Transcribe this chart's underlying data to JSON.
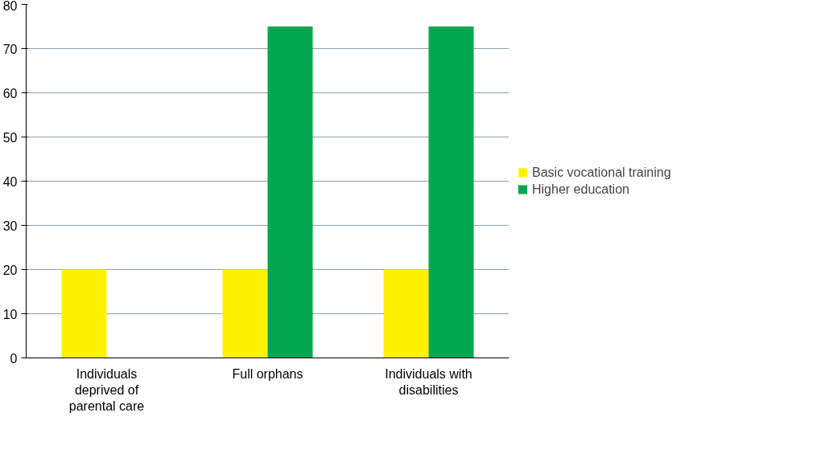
{
  "chart_data": {
    "type": "bar",
    "categories": [
      "Individuals deprived of parental care",
      "Full orphans",
      "Individuals with disabilities"
    ],
    "series": [
      {
        "name": "Basic vocational training",
        "color": "#fff200",
        "values": [
          20,
          20,
          20
        ]
      },
      {
        "name": "Higher education",
        "color": "#00a650",
        "values": [
          null,
          75,
          75
        ]
      }
    ],
    "ylim": [
      0,
      80
    ],
    "yticks": [
      0,
      10,
      20,
      30,
      40,
      50,
      60,
      70,
      80
    ],
    "grid": "y",
    "legend": "right"
  }
}
